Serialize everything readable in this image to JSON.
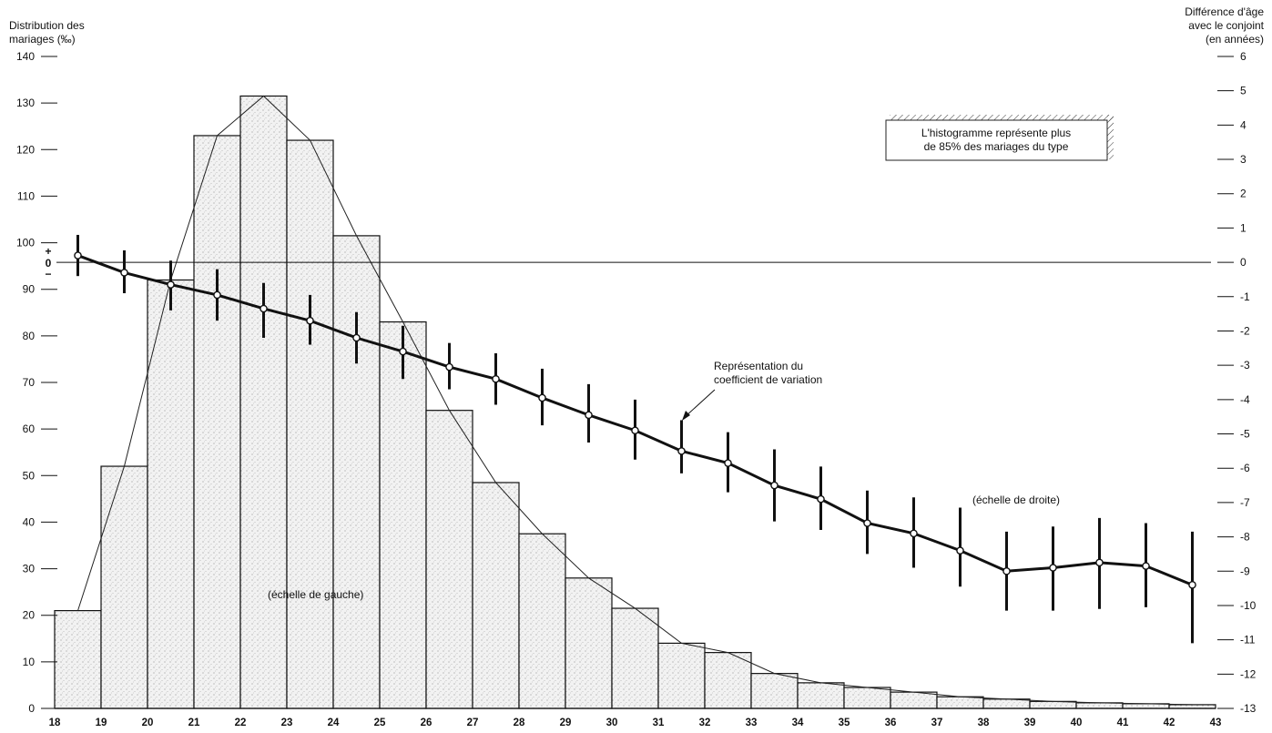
{
  "chart_data": {
    "type": "bar",
    "left_axis_label": [
      "Distribution des",
      "mariages (‰)"
    ],
    "right_axis_label": [
      "Différence d'âge",
      "avec le conjoint",
      "(en années)"
    ],
    "left_axis": {
      "ylim": [
        0,
        140
      ],
      "ticks": [
        0,
        10,
        20,
        30,
        40,
        50,
        60,
        70,
        80,
        90,
        100,
        110,
        120,
        130,
        140
      ]
    },
    "right_axis": {
      "ylim": [
        -13,
        6
      ],
      "ticks": [
        6,
        5,
        4,
        3,
        2,
        1,
        0,
        -1,
        -2,
        -3,
        -4,
        -5,
        -6,
        -7,
        -8,
        -9,
        -10,
        -11,
        -12,
        -13
      ]
    },
    "x_axis": {
      "xlim": [
        18,
        43
      ],
      "ticks": [
        18,
        19,
        20,
        21,
        22,
        23,
        24,
        25,
        26,
        27,
        28,
        29,
        30,
        31,
        32,
        33,
        34,
        35,
        36,
        37,
        38,
        39,
        40,
        41,
        42,
        43
      ]
    },
    "zero_marker": {
      "plus": "+",
      "zero": "0",
      "minus": "−"
    },
    "histogram": {
      "name": "Distribution des mariages (échelle de gauche)",
      "bins_start": [
        18,
        19,
        20,
        21,
        22,
        23,
        24,
        25,
        26,
        27,
        28,
        29,
        30,
        31,
        32,
        33,
        34,
        35,
        36,
        37,
        38,
        39,
        40,
        41,
        42
      ],
      "values": [
        21,
        52,
        92,
        123,
        131.5,
        122,
        101.5,
        83,
        64,
        48.5,
        37.5,
        28,
        21.5,
        14,
        12,
        7.5,
        5.5,
        4.5,
        3.5,
        2.5,
        2,
        1.5,
        1.2,
        1,
        0.8
      ]
    },
    "frequency_polygon": {
      "x": [
        18.5,
        19.5,
        20.5,
        21.5,
        22.5,
        23.5,
        24.5,
        25.5,
        26.5,
        27.5,
        28.5,
        29.5,
        30.5,
        31.5,
        32.5,
        33.5,
        34.5,
        35.5,
        36.5,
        37.5,
        38.5,
        39.5,
        40.5,
        41.5,
        42.5
      ],
      "y": [
        21,
        52,
        92,
        123,
        131.5,
        122,
        101.5,
        83,
        64,
        48.5,
        37.5,
        28,
        21.5,
        14,
        12,
        7.5,
        5.5,
        4.5,
        3.5,
        2.5,
        2,
        1.5,
        1.2,
        1,
        0.8
      ]
    },
    "age_difference": {
      "name": "Différence d'âge avec le conjoint (échelle de droite)",
      "x": [
        18.5,
        19.5,
        20.5,
        21.5,
        22.5,
        23.5,
        24.5,
        25.5,
        26.5,
        27.5,
        28.5,
        29.5,
        30.5,
        31.5,
        32.5,
        33.5,
        34.5,
        35.5,
        36.5,
        37.5,
        38.5,
        39.5,
        40.5,
        41.5,
        42.5
      ],
      "y": [
        0.2,
        -0.3,
        -0.65,
        -0.95,
        -1.35,
        -1.7,
        -2.2,
        -2.6,
        -3.05,
        -3.4,
        -3.95,
        -4.45,
        -4.9,
        -5.5,
        -5.85,
        -6.5,
        -6.9,
        -7.6,
        -7.9,
        -8.4,
        -9.0,
        -8.9,
        -8.75,
        -8.85,
        -9.4
      ],
      "err_low": [
        -0.4,
        -0.9,
        -1.4,
        -1.7,
        -2.2,
        -2.4,
        -2.95,
        -3.4,
        -3.7,
        -4.15,
        -4.75,
        -5.25,
        -5.75,
        -6.15,
        -6.7,
        -7.55,
        -7.8,
        -8.5,
        -8.9,
        -9.45,
        -10.15,
        -10.15,
        -10.1,
        -10.05,
        -11.1
      ],
      "err_high": [
        0.8,
        0.35,
        0.05,
        -0.2,
        -0.6,
        -0.95,
        -1.45,
        -1.85,
        -2.35,
        -2.65,
        -3.1,
        -3.55,
        -4.0,
        -4.6,
        -4.95,
        -5.45,
        -5.95,
        -6.65,
        -6.85,
        -7.15,
        -7.85,
        -7.7,
        -7.45,
        -7.6,
        -7.85
      ]
    },
    "annotations": {
      "cv_label": [
        "Représentation du",
        "coefficient de variation"
      ],
      "right_scale_label": "(échelle de droite)",
      "left_scale_label": "(échelle de gauche)"
    },
    "legend_box": {
      "text": [
        "L'histogramme représente plus",
        "de 85% des mariages du type"
      ]
    }
  }
}
